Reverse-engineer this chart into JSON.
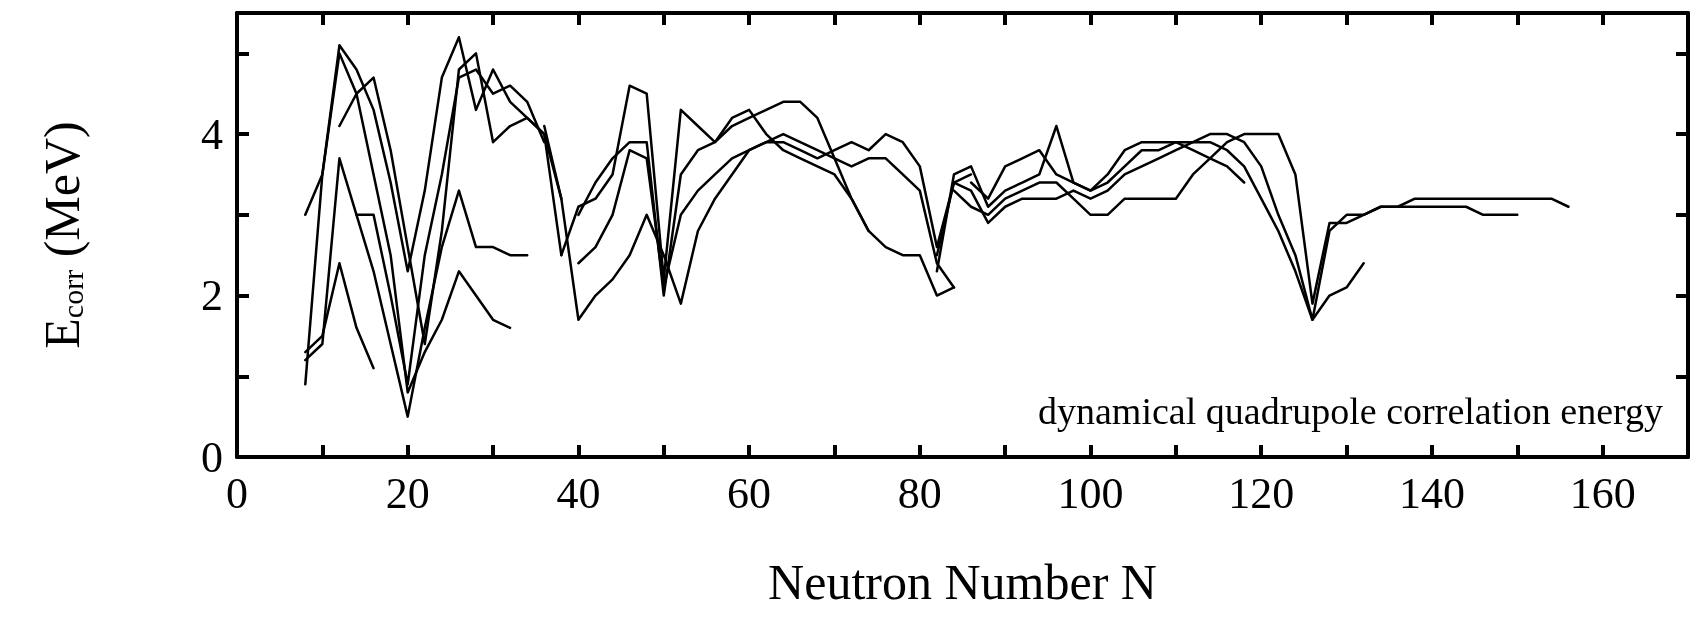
{
  "chart_data": {
    "type": "line",
    "xlabel": "Neutron Number N",
    "ylabel": "E$_{corr}$ (MeV)",
    "annotations": [
      "dynamical quadrupole correlation energy"
    ],
    "xlim": [
      0,
      170
    ],
    "xticks": [
      0,
      {
        "value": 10,
        "label": null
      },
      20,
      {
        "value": 30,
        "label": null
      },
      40,
      {
        "value": 50,
        "label": null
      },
      60,
      {
        "value": 70,
        "label": null
      },
      80,
      {
        "value": 90,
        "label": null
      },
      100,
      {
        "value": 110,
        "label": null
      },
      120,
      {
        "value": 130,
        "label": null
      },
      140,
      {
        "value": 150,
        "label": null
      },
      160
    ],
    "ylim": [
      0,
      5.5
    ],
    "yticks": [
      0,
      {
        "value": 1,
        "label": null
      },
      2,
      {
        "value": 3,
        "label": null
      },
      4,
      {
        "value": 5,
        "label": null
      }
    ],
    "grid": false,
    "marker": "none",
    "line_style": "solid",
    "series": [
      {
        "color": "#000000",
        "x": [
          8,
          10,
          12,
          14,
          16,
          18,
          20,
          22,
          24,
          26,
          28,
          30,
          32,
          34,
          36,
          38
        ],
        "values": [
          3.0,
          3.5,
          5.1,
          4.8,
          4.3,
          3.4,
          2.3,
          3.3,
          4.7,
          5.2,
          4.3,
          4.8,
          4.4,
          4.2,
          4.0,
          3.2
        ]
      },
      {
        "color": "#000000",
        "x": [
          12,
          14,
          16,
          18,
          20,
          22,
          24,
          26,
          28,
          30,
          32,
          34,
          36,
          38
        ],
        "values": [
          4.1,
          4.5,
          4.7,
          3.8,
          2.6,
          1.4,
          2.8,
          4.8,
          5.0,
          3.9,
          4.1,
          4.2,
          4.0,
          2.5
        ]
      },
      {
        "color": "#000000",
        "x": [
          8,
          10,
          12,
          14,
          16,
          18,
          20,
          22,
          24,
          26,
          28,
          30,
          32,
          34
        ],
        "values": [
          1.2,
          1.4,
          3.7,
          3.0,
          2.3,
          1.4,
          0.5,
          1.6,
          2.6,
          3.3,
          2.6,
          2.6,
          2.5,
          2.5
        ]
      },
      {
        "color": "#000000",
        "x": [
          8,
          10,
          12,
          14,
          16,
          18,
          20,
          22,
          24,
          26,
          28,
          30,
          32
        ],
        "values": [
          0.9,
          3.5,
          5.0,
          4.5,
          3.5,
          2.5,
          0.8,
          1.3,
          1.7,
          2.3,
          2.0,
          1.7,
          1.6
        ]
      },
      {
        "color": "#000000",
        "x": [
          8,
          10,
          12,
          14,
          16
        ],
        "values": [
          1.3,
          1.5,
          2.4,
          1.6,
          1.1
        ]
      },
      {
        "color": "#000000",
        "x": [
          14,
          16,
          18,
          20,
          22,
          24,
          26,
          28,
          30,
          32,
          34,
          36
        ],
        "values": [
          3.0,
          3.0,
          2.0,
          0.9,
          2.5,
          3.5,
          4.7,
          4.8,
          4.5,
          4.6,
          4.4,
          3.9
        ]
      },
      {
        "color": "#000000",
        "x": [
          36,
          38,
          40,
          42,
          44,
          46,
          48,
          50,
          52,
          54,
          56,
          58,
          60,
          62,
          64,
          66,
          68,
          70,
          72,
          74,
          76,
          78,
          80,
          82,
          84
        ],
        "values": [
          4.1,
          3.2,
          1.7,
          2.0,
          2.2,
          2.5,
          3.0,
          2.5,
          1.9,
          2.8,
          3.2,
          3.5,
          3.8,
          3.9,
          4.0,
          3.9,
          3.8,
          3.7,
          3.6,
          3.7,
          3.7,
          3.5,
          3.3,
          2.4,
          2.1
        ]
      },
      {
        "color": "#000000",
        "x": [
          38,
          40,
          42,
          44,
          46,
          48,
          50,
          52,
          54,
          56,
          58,
          60,
          62,
          64,
          66,
          68,
          70,
          72,
          74
        ],
        "values": [
          2.5,
          3.1,
          3.2,
          3.5,
          4.6,
          4.5,
          2.2,
          4.3,
          4.1,
          3.9,
          4.2,
          4.3,
          4.0,
          3.8,
          3.7,
          3.6,
          3.5,
          3.2,
          2.8
        ]
      },
      {
        "color": "#000000",
        "x": [
          40,
          42,
          44,
          46,
          48,
          50,
          52,
          54,
          56,
          58,
          60,
          62,
          64,
          66,
          68,
          70,
          72,
          74,
          76,
          78,
          80,
          82,
          84
        ],
        "values": [
          3.0,
          3.4,
          3.7,
          3.9,
          3.9,
          2.0,
          3.5,
          3.8,
          3.9,
          4.1,
          4.2,
          4.3,
          4.4,
          4.4,
          4.2,
          3.7,
          3.2,
          2.8,
          2.6,
          2.5,
          2.5,
          2.0,
          2.1
        ]
      },
      {
        "color": "#000000",
        "x": [
          40,
          42,
          44,
          46,
          48,
          50,
          52,
          54,
          56,
          58,
          60,
          62,
          64,
          66,
          68,
          70,
          72,
          74,
          76,
          78,
          80,
          82,
          84,
          86
        ],
        "values": [
          2.4,
          2.6,
          3.0,
          3.8,
          3.7,
          2.1,
          3.0,
          3.3,
          3.5,
          3.7,
          3.8,
          3.9,
          3.9,
          3.8,
          3.7,
          3.8,
          3.9,
          3.8,
          4.0,
          3.9,
          3.6,
          2.6,
          3.4,
          3.5
        ]
      },
      {
        "color": "#000000",
        "x": [
          82,
          84,
          86,
          88,
          90,
          92,
          94,
          96,
          98,
          100,
          102,
          104,
          106,
          108,
          110,
          112,
          114,
          116,
          118,
          120,
          122,
          124,
          126,
          128,
          130,
          132,
          134,
          136,
          138,
          140,
          142,
          144,
          146,
          148,
          150,
          152,
          154,
          156
        ],
        "values": [
          2.3,
          3.5,
          3.6,
          3.1,
          3.3,
          3.4,
          3.5,
          4.1,
          3.4,
          3.3,
          3.4,
          3.6,
          3.8,
          3.8,
          3.9,
          3.9,
          4.0,
          4.0,
          3.9,
          3.6,
          3.0,
          2.5,
          1.7,
          2.8,
          3.0,
          3.0,
          3.1,
          3.1,
          3.2,
          3.2,
          3.2,
          3.2,
          3.2,
          3.2,
          3.2,
          3.2,
          3.2,
          3.1
        ]
      },
      {
        "color": "#000000",
        "x": [
          82,
          84,
          86,
          88,
          90,
          92,
          94,
          96,
          98,
          100,
          102,
          104,
          106,
          108,
          110,
          112,
          114,
          116,
          118,
          120,
          122,
          124,
          126,
          128,
          130,
          132
        ],
        "values": [
          2.5,
          3.4,
          3.3,
          2.9,
          3.1,
          3.2,
          3.2,
          3.2,
          3.3,
          3.2,
          3.3,
          3.5,
          3.6,
          3.7,
          3.8,
          3.9,
          3.9,
          3.8,
          3.6,
          3.2,
          2.8,
          2.3,
          1.7,
          2.0,
          2.1,
          2.4
        ]
      },
      {
        "color": "#000000",
        "x": [
          84,
          86,
          88,
          90,
          92,
          94,
          96,
          98,
          100,
          102,
          104,
          106,
          108,
          110,
          112,
          114,
          116,
          118,
          120,
          122,
          124,
          126,
          128,
          130,
          132,
          134,
          136,
          138,
          140,
          142,
          144,
          146,
          148,
          150
        ],
        "values": [
          3.3,
          3.1,
          3.0,
          3.2,
          3.3,
          3.4,
          3.4,
          3.2,
          3.0,
          3.0,
          3.2,
          3.2,
          3.2,
          3.2,
          3.5,
          3.7,
          3.9,
          4.0,
          4.0,
          4.0,
          3.5,
          1.9,
          2.9,
          2.9,
          3.0,
          3.1,
          3.1,
          3.1,
          3.1,
          3.1,
          3.1,
          3.0,
          3.0,
          3.0
        ]
      },
      {
        "color": "#000000",
        "x": [
          86,
          88,
          90,
          92,
          94,
          96,
          98,
          100,
          102,
          104,
          106,
          108,
          110,
          112,
          114,
          116,
          118
        ],
        "values": [
          3.4,
          3.2,
          3.6,
          3.7,
          3.8,
          3.5,
          3.4,
          3.3,
          3.5,
          3.8,
          3.9,
          3.9,
          3.9,
          3.8,
          3.7,
          3.6,
          3.4
        ]
      }
    ]
  }
}
